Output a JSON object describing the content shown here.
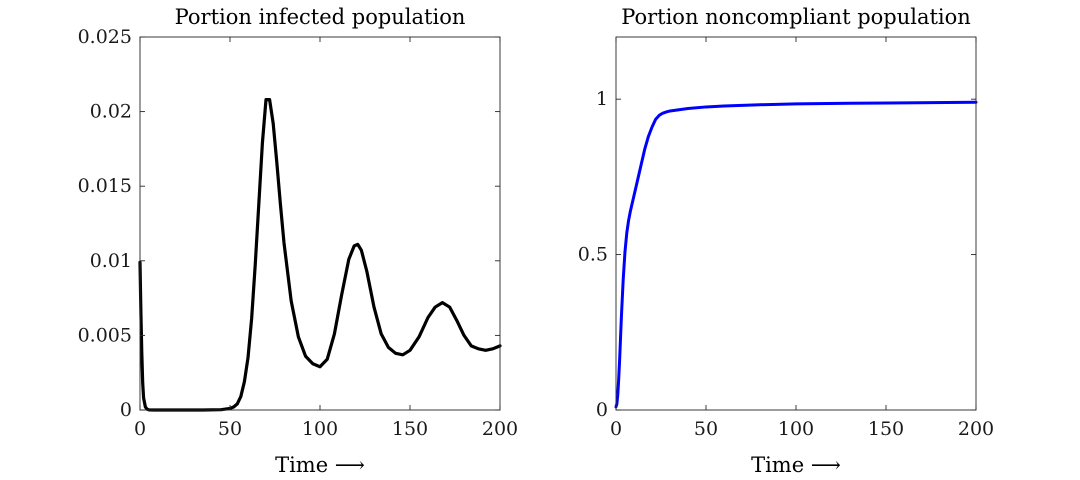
{
  "chart_data": [
    {
      "type": "line",
      "title": "Portion infected population",
      "xlabel": "Time ⟶",
      "ylabel": "",
      "xlim": [
        0,
        200
      ],
      "ylim": [
        0,
        0.025
      ],
      "xticks": [
        0,
        50,
        100,
        150,
        200
      ],
      "xtick_labels": [
        "0",
        "50",
        "100",
        "150",
        "200"
      ],
      "yticks": [
        0,
        0.005,
        0.01,
        0.015,
        0.02,
        0.025
      ],
      "ytick_labels": [
        "0",
        "0.005",
        "0.01",
        "0.015",
        "0.02",
        "0.025"
      ],
      "series": [
        {
          "name": "infected",
          "color": "#000000",
          "x": [
            0,
            0.5,
            1,
            1.5,
            2,
            3,
            4,
            5,
            8,
            15,
            25,
            35,
            45,
            50,
            52,
            54,
            56,
            58,
            60,
            62,
            64,
            66,
            68,
            70,
            72,
            74,
            76,
            78,
            80,
            84,
            88,
            92,
            96,
            100,
            104,
            108,
            112,
            116,
            119,
            121,
            123,
            126,
            130,
            134,
            138,
            142,
            146,
            150,
            155,
            160,
            164,
            168,
            172,
            176,
            180,
            184,
            188,
            192,
            196,
            200
          ],
          "y": [
            0.0099,
            0.0065,
            0.0038,
            0.0018,
            0.0008,
            0.0002,
            5e-05,
            1e-05,
            0,
            0,
            0,
            0,
            2e-05,
            0.0001,
            0.0002,
            0.0004,
            0.0009,
            0.0019,
            0.0035,
            0.0061,
            0.0097,
            0.0138,
            0.0179,
            0.0208,
            0.0208,
            0.0192,
            0.0166,
            0.0138,
            0.0112,
            0.0073,
            0.0049,
            0.0036,
            0.0031,
            0.0029,
            0.0034,
            0.0051,
            0.0077,
            0.0101,
            0.011,
            0.0111,
            0.0107,
            0.0093,
            0.0069,
            0.0051,
            0.0042,
            0.0038,
            0.0037,
            0.004,
            0.0049,
            0.0062,
            0.0069,
            0.0072,
            0.0069,
            0.006,
            0.005,
            0.0043,
            0.0041,
            0.004,
            0.0041,
            0.0043
          ]
        }
      ]
    },
    {
      "type": "line",
      "title": "Portion noncompliant population",
      "xlabel": "Time ⟶",
      "ylabel": "",
      "xlim": [
        0,
        200
      ],
      "ylim": [
        0,
        1.2
      ],
      "xticks": [
        0,
        50,
        100,
        150,
        200
      ],
      "xtick_labels": [
        "0",
        "50",
        "100",
        "150",
        "200"
      ],
      "yticks": [
        0,
        0.5,
        1
      ],
      "ytick_labels": [
        "0",
        "0.5",
        "1"
      ],
      "series": [
        {
          "name": "noncompliant",
          "color": "#0000ff",
          "x": [
            0,
            0.5,
            1,
            1.5,
            2,
            2.5,
            3,
            4,
            5,
            6,
            7,
            8,
            10,
            12,
            14,
            16,
            18,
            20,
            22,
            24,
            26,
            28,
            30,
            35,
            40,
            50,
            60,
            80,
            100,
            130,
            160,
            200
          ],
          "y": [
            0.01,
            0.02,
            0.05,
            0.1,
            0.16,
            0.23,
            0.3,
            0.42,
            0.51,
            0.57,
            0.61,
            0.64,
            0.69,
            0.74,
            0.79,
            0.84,
            0.88,
            0.91,
            0.935,
            0.948,
            0.955,
            0.959,
            0.962,
            0.966,
            0.97,
            0.975,
            0.978,
            0.982,
            0.985,
            0.987,
            0.988,
            0.99
          ]
        }
      ]
    }
  ]
}
